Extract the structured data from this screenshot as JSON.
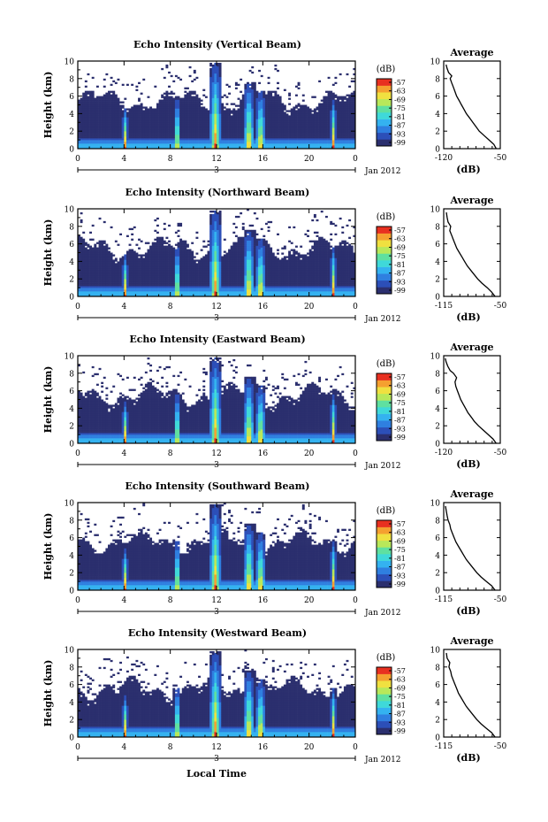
{
  "chart_data": [
    {
      "type": "heatmap",
      "title": "Echo Intensity (Vertical Beam)",
      "ylabel": "Height (km)",
      "ylim": [
        0,
        10
      ],
      "yticks": [
        "0",
        "2",
        "4",
        "6",
        "8",
        "10"
      ],
      "xlim": [
        0,
        24
      ],
      "xticks": [
        "0",
        "4",
        "8",
        "12",
        "16",
        "20",
        "0"
      ],
      "date_tick": "3",
      "date_label": "Jan 2012",
      "colorbar": {
        "label": "(dB)",
        "ticks": [
          "-57",
          "-63",
          "-69",
          "-75",
          "-81",
          "-87",
          "-93",
          "-99"
        ]
      },
      "profile": {
        "title": "Average",
        "xlabel": "(dB)",
        "xlim": [
          -120,
          -50
        ],
        "xticks": [
          "-120",
          "-50"
        ],
        "yticks": [
          "0",
          "2",
          "4",
          "6",
          "8",
          "10"
        ],
        "values": [
          [
            -55,
            0.0
          ],
          [
            -58,
            0.5
          ],
          [
            -64,
            1.0
          ],
          [
            -70,
            1.5
          ],
          [
            -76,
            2.0
          ],
          [
            -80,
            2.5
          ],
          [
            -84,
            3.0
          ],
          [
            -88,
            3.5
          ],
          [
            -92,
            4.0
          ],
          [
            -95,
            4.5
          ],
          [
            -98,
            5.0
          ],
          [
            -101,
            5.5
          ],
          [
            -104,
            6.0
          ],
          [
            -106,
            6.5
          ],
          [
            -108,
            7.0
          ],
          [
            -110,
            7.5
          ],
          [
            -112,
            8.0
          ],
          [
            -110,
            8.3
          ],
          [
            -114,
            8.7
          ],
          [
            -116,
            9.2
          ],
          [
            -117,
            9.6
          ]
        ]
      }
    },
    {
      "type": "heatmap",
      "title": "Echo Intensity (Northward Beam)",
      "ylabel": "Height (km)",
      "ylim": [
        0,
        10
      ],
      "yticks": [
        "0",
        "2",
        "4",
        "6",
        "8",
        "10"
      ],
      "xlim": [
        0,
        24
      ],
      "xticks": [
        "0",
        "4",
        "8",
        "12",
        "16",
        "20",
        "0"
      ],
      "date_tick": "3",
      "date_label": "Jan 2012",
      "colorbar": {
        "label": "(dB)",
        "ticks": [
          "-57",
          "-63",
          "-69",
          "-75",
          "-81",
          "-87",
          "-93",
          "-99"
        ]
      },
      "profile": {
        "title": "Average",
        "xlabel": "(dB)",
        "xlim": [
          -115,
          -50
        ],
        "xticks": [
          "-115",
          "-50"
        ],
        "yticks": [
          "0",
          "2",
          "4",
          "6",
          "8",
          "10"
        ],
        "values": [
          [
            -56,
            0.0
          ],
          [
            -60,
            0.5
          ],
          [
            -65,
            1.0
          ],
          [
            -71,
            1.5
          ],
          [
            -76,
            2.0
          ],
          [
            -80,
            2.5
          ],
          [
            -84,
            3.0
          ],
          [
            -88,
            3.5
          ],
          [
            -91,
            4.0
          ],
          [
            -94,
            4.5
          ],
          [
            -97,
            5.0
          ],
          [
            -100,
            5.5
          ],
          [
            -102,
            6.0
          ],
          [
            -104,
            6.5
          ],
          [
            -106,
            7.0
          ],
          [
            -108,
            7.5
          ],
          [
            -107,
            8.0
          ],
          [
            -110,
            8.5
          ],
          [
            -111,
            9.0
          ],
          [
            -112,
            9.6
          ]
        ]
      }
    },
    {
      "type": "heatmap",
      "title": "Echo Intensity (Eastward Beam)",
      "ylabel": "Height (km)",
      "ylim": [
        0,
        10
      ],
      "yticks": [
        "0",
        "2",
        "4",
        "6",
        "8",
        "10"
      ],
      "xlim": [
        0,
        24
      ],
      "xticks": [
        "0",
        "4",
        "8",
        "12",
        "16",
        "20",
        "0"
      ],
      "date_tick": "3",
      "date_label": "Jan 2012",
      "colorbar": {
        "label": "(dB)",
        "ticks": [
          "-57",
          "-63",
          "-69",
          "-75",
          "-81",
          "-87",
          "-93",
          "-99"
        ]
      },
      "profile": {
        "title": "Average",
        "xlabel": "(dB)",
        "xlim": [
          -120,
          -50
        ],
        "xticks": [
          "-120",
          "-50"
        ],
        "yticks": [
          "0",
          "2",
          "4",
          "6",
          "8",
          "10"
        ],
        "values": [
          [
            -55,
            0.0
          ],
          [
            -59,
            0.5
          ],
          [
            -65,
            1.0
          ],
          [
            -71,
            1.5
          ],
          [
            -77,
            2.0
          ],
          [
            -82,
            2.5
          ],
          [
            -86,
            3.0
          ],
          [
            -90,
            3.5
          ],
          [
            -93,
            4.0
          ],
          [
            -96,
            4.5
          ],
          [
            -99,
            5.0
          ],
          [
            -101,
            5.5
          ],
          [
            -103,
            6.0
          ],
          [
            -105,
            6.5
          ],
          [
            -106,
            7.0
          ],
          [
            -104,
            7.5
          ],
          [
            -108,
            8.0
          ],
          [
            -112,
            8.3
          ],
          [
            -115,
            8.8
          ],
          [
            -117,
            9.3
          ],
          [
            -118,
            9.7
          ]
        ]
      }
    },
    {
      "type": "heatmap",
      "title": "Echo Intensity (Southward Beam)",
      "ylabel": "Height (km)",
      "ylim": [
        0,
        10
      ],
      "yticks": [
        "0",
        "2",
        "4",
        "6",
        "8",
        "10"
      ],
      "xlim": [
        0,
        24
      ],
      "xticks": [
        "0",
        "4",
        "8",
        "12",
        "16",
        "20",
        "0"
      ],
      "date_tick": "3",
      "date_label": "Jan 2012",
      "colorbar": {
        "label": "(dB)",
        "ticks": [
          "-57",
          "-63",
          "-69",
          "-75",
          "-81",
          "-87",
          "-93",
          "-99"
        ]
      },
      "profile": {
        "title": "Average",
        "xlabel": "(dB)",
        "xlim": [
          -115,
          -50
        ],
        "xticks": [
          "-115",
          "-50"
        ],
        "yticks": [
          "0",
          "2",
          "4",
          "6",
          "8",
          "10"
        ],
        "values": [
          [
            -56,
            0.0
          ],
          [
            -60,
            0.5
          ],
          [
            -66,
            1.0
          ],
          [
            -72,
            1.5
          ],
          [
            -77,
            2.0
          ],
          [
            -81,
            2.5
          ],
          [
            -85,
            3.0
          ],
          [
            -89,
            3.5
          ],
          [
            -92,
            4.0
          ],
          [
            -95,
            4.5
          ],
          [
            -98,
            5.0
          ],
          [
            -101,
            5.5
          ],
          [
            -103,
            6.0
          ],
          [
            -105,
            6.5
          ],
          [
            -107,
            7.0
          ],
          [
            -108,
            7.5
          ],
          [
            -110,
            8.0
          ],
          [
            -111,
            8.5
          ],
          [
            -112,
            9.0
          ],
          [
            -113,
            9.6
          ]
        ]
      }
    },
    {
      "type": "heatmap",
      "title": "Echo Intensity (Westward Beam)",
      "ylabel": "Height (km)",
      "ylim": [
        0,
        10
      ],
      "yticks": [
        "0",
        "2",
        "4",
        "6",
        "8",
        "10"
      ],
      "xlim": [
        0,
        24
      ],
      "xticks": [
        "0",
        "4",
        "8",
        "12",
        "16",
        "20",
        "0"
      ],
      "date_tick": "3",
      "date_label": "Jan 2012",
      "colorbar": {
        "label": "(dB)",
        "ticks": [
          "-57",
          "-63",
          "-69",
          "-75",
          "-81",
          "-87",
          "-93",
          "-99"
        ]
      },
      "profile": {
        "title": "Average",
        "xlabel": "(dB)",
        "xlim": [
          -115,
          -50
        ],
        "xticks": [
          "-115",
          "-50"
        ],
        "yticks": [
          "0",
          "2",
          "4",
          "6",
          "8",
          "10"
        ],
        "values": [
          [
            -56,
            0.0
          ],
          [
            -60,
            0.5
          ],
          [
            -66,
            1.0
          ],
          [
            -72,
            1.5
          ],
          [
            -77,
            2.0
          ],
          [
            -81,
            2.5
          ],
          [
            -85,
            3.0
          ],
          [
            -89,
            3.5
          ],
          [
            -92,
            4.0
          ],
          [
            -95,
            4.5
          ],
          [
            -98,
            5.0
          ],
          [
            -100,
            5.5
          ],
          [
            -102,
            6.0
          ],
          [
            -104,
            6.5
          ],
          [
            -106,
            7.0
          ],
          [
            -107,
            7.5
          ],
          [
            -109,
            8.0
          ],
          [
            -108,
            8.5
          ],
          [
            -111,
            9.0
          ],
          [
            -112,
            9.6
          ]
        ]
      }
    }
  ],
  "common": {
    "xlabel": "Local Time",
    "colormap": [
      "#2b2f6e",
      "#2c4fb8",
      "#2f7fe0",
      "#34b2f0",
      "#3fd9d9",
      "#5fe0a0",
      "#b8e85a",
      "#f0e040",
      "#f5a030",
      "#e83020"
    ]
  }
}
